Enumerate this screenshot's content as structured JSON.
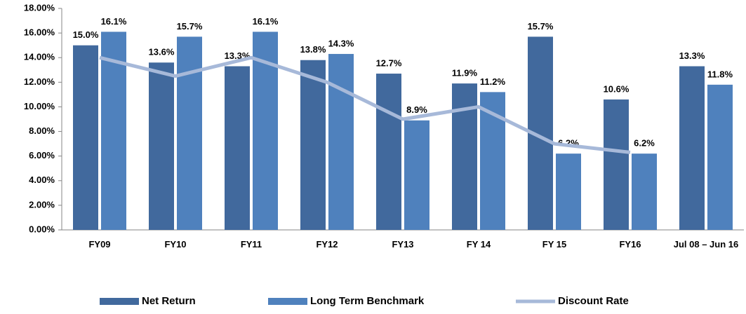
{
  "chart_data": {
    "type": "bar",
    "categories": [
      "FY09",
      "FY10",
      "FY11",
      "FY12",
      "FY13",
      "FY 14",
      "FY 15",
      "FY16",
      "Jul 08 – Jun 16"
    ],
    "series": [
      {
        "name": "Net Return",
        "color": "#41699d",
        "values": [
          15.0,
          13.6,
          13.3,
          13.8,
          12.7,
          11.9,
          15.7,
          10.6,
          13.3
        ],
        "value_labels": [
          "15.0%",
          "13.6%",
          "13.3%",
          "13.8%",
          "12.7%",
          "11.9%",
          "15.7%",
          "10.6%",
          "13.3%"
        ]
      },
      {
        "name": "Long Term Benchmark",
        "color": "#4f81bd",
        "values": [
          16.1,
          15.7,
          16.1,
          14.3,
          8.9,
          11.2,
          6.2,
          6.2,
          11.8
        ],
        "value_labels": [
          "16.1%",
          "15.7%",
          "16.1%",
          "14.3%",
          "8.9%",
          "11.2%",
          "6.2%",
          "6.2%",
          "11.8%"
        ]
      },
      {
        "name": "Discount Rate",
        "type": "line",
        "color": "#a7b9d9",
        "values": [
          14.0,
          12.5,
          14.0,
          12.0,
          9.0,
          10.0,
          7.0,
          6.3,
          null
        ]
      }
    ],
    "ylim": [
      0,
      18
    ],
    "yticks": [
      {
        "value": 0,
        "label": "0.00%"
      },
      {
        "value": 2,
        "label": "2.00%"
      },
      {
        "value": 4,
        "label": "4.00%"
      },
      {
        "value": 6,
        "label": "6.00%"
      },
      {
        "value": 8,
        "label": "8.00%"
      },
      {
        "value": 10,
        "label": "10.00%"
      },
      {
        "value": 12,
        "label": "12.00%"
      },
      {
        "value": 14,
        "label": "14.00%"
      },
      {
        "value": 16,
        "label": "16.00%"
      },
      {
        "value": 18,
        "label": "18.00%"
      }
    ],
    "grid": false,
    "legend": "bottom"
  }
}
